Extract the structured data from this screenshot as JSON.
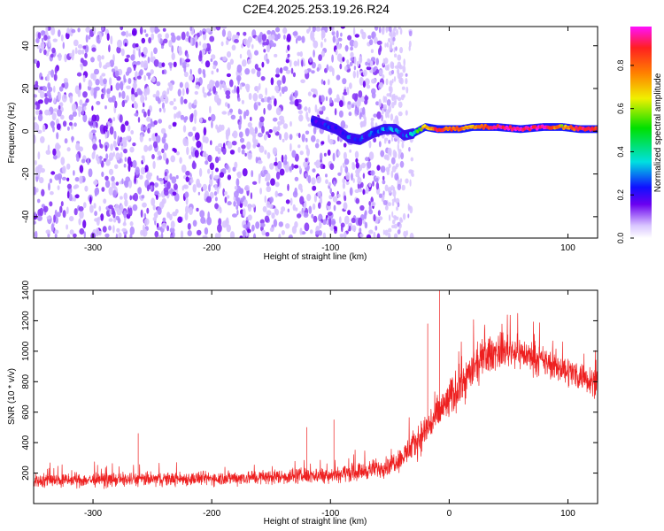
{
  "figure_title": "C2E4.2025.253.19.26.R24",
  "colors": {
    "snr_line": "#ee2020",
    "scatter_dark": "#6a00f0",
    "scatter_light": "#d9c2ff",
    "axis": "#000000"
  },
  "chart_data": [
    {
      "type": "heatmap",
      "xlabel": "Height of straight line (km)",
      "ylabel": "Frequency (Hz)",
      "xlim": [
        -350,
        125
      ],
      "ylim": [
        -50,
        49
      ],
      "xticks": [
        -300,
        -200,
        -100,
        0,
        100
      ],
      "yticks": [
        -40,
        -20,
        0,
        20,
        40
      ],
      "grid": false,
      "noise_region": {
        "x": [
          -350,
          -55
        ],
        "y": [
          -50,
          49
        ],
        "density": "high",
        "typical_amplitude": 0.12
      },
      "fade_region": {
        "x": [
          -55,
          -30
        ],
        "y": [
          -50,
          49
        ],
        "density": "low",
        "typical_amplitude": 0.05
      },
      "signal_trace": {
        "x": [
          -115,
          -105,
          -95,
          -85,
          -75,
          -65,
          -55,
          -45,
          -38,
          -30,
          -20,
          -10,
          0,
          10,
          20,
          40,
          60,
          80,
          95,
          110,
          125
        ],
        "y": [
          5,
          3,
          1,
          -3,
          -4,
          -1,
          1,
          1,
          -2,
          -1,
          2,
          1,
          1,
          1,
          2,
          2,
          1,
          2,
          2,
          1,
          1
        ],
        "amplitude": [
          0.15,
          0.2,
          0.18,
          0.22,
          0.2,
          0.25,
          0.3,
          0.25,
          0.2,
          0.35,
          0.6,
          0.8,
          0.75,
          0.7,
          0.65,
          0.85,
          0.9,
          0.9,
          0.6,
          0.85,
          0.8
        ]
      },
      "colorbar": {
        "label": "Normalized spectral amplitude",
        "range": [
          0,
          0.98
        ],
        "ticks": [
          "0.0",
          "0.2",
          "0.4",
          "0.6",
          "0.8"
        ],
        "tick_values": [
          0,
          0.2,
          0.4,
          0.6,
          0.8
        ],
        "colormap": [
          "#ffffff",
          "#d8c4ff",
          "#6a00f0",
          "#1010ff",
          "#00e0e0",
          "#00e000",
          "#f0f000",
          "#ff8000",
          "#ff2020",
          "#ff10ff"
        ]
      }
    },
    {
      "type": "line",
      "xlabel": "Height of straight line (km)",
      "ylabel": "SNR (10 * v/v)",
      "xlim": [
        -350,
        125
      ],
      "ylim": [
        0,
        1400
      ],
      "xticks": [
        -300,
        -200,
        -100,
        0,
        100
      ],
      "yticks": [
        200,
        400,
        600,
        800,
        1000,
        1200,
        1400
      ],
      "grid": false,
      "series": [
        {
          "x": [
            -350,
            -300,
            -250,
            -200,
            -150,
            -100,
            -75,
            -55,
            -40,
            -30,
            -20,
            -10,
            0,
            10,
            20,
            30,
            40,
            50,
            60,
            70,
            80,
            90,
            100,
            110,
            125
          ],
          "mean": [
            150,
            155,
            160,
            165,
            175,
            190,
            210,
            240,
            300,
            380,
            480,
            580,
            680,
            780,
            880,
            960,
            1000,
            1010,
            990,
            960,
            930,
            900,
            870,
            840,
            800
          ],
          "spread": [
            70,
            70,
            70,
            70,
            75,
            80,
            90,
            100,
            120,
            150,
            180,
            200,
            210,
            210,
            200,
            190,
            180,
            170,
            160,
            160,
            150,
            150,
            150,
            150,
            150
          ],
          "spikes": [
            {
              "x": -8,
              "y": 1420
            },
            {
              "x": -18,
              "y": 1180
            },
            {
              "x": -97,
              "y": 550
            },
            {
              "x": -262,
              "y": 460
            },
            {
              "x": -120,
              "y": 500
            }
          ]
        }
      ]
    }
  ]
}
